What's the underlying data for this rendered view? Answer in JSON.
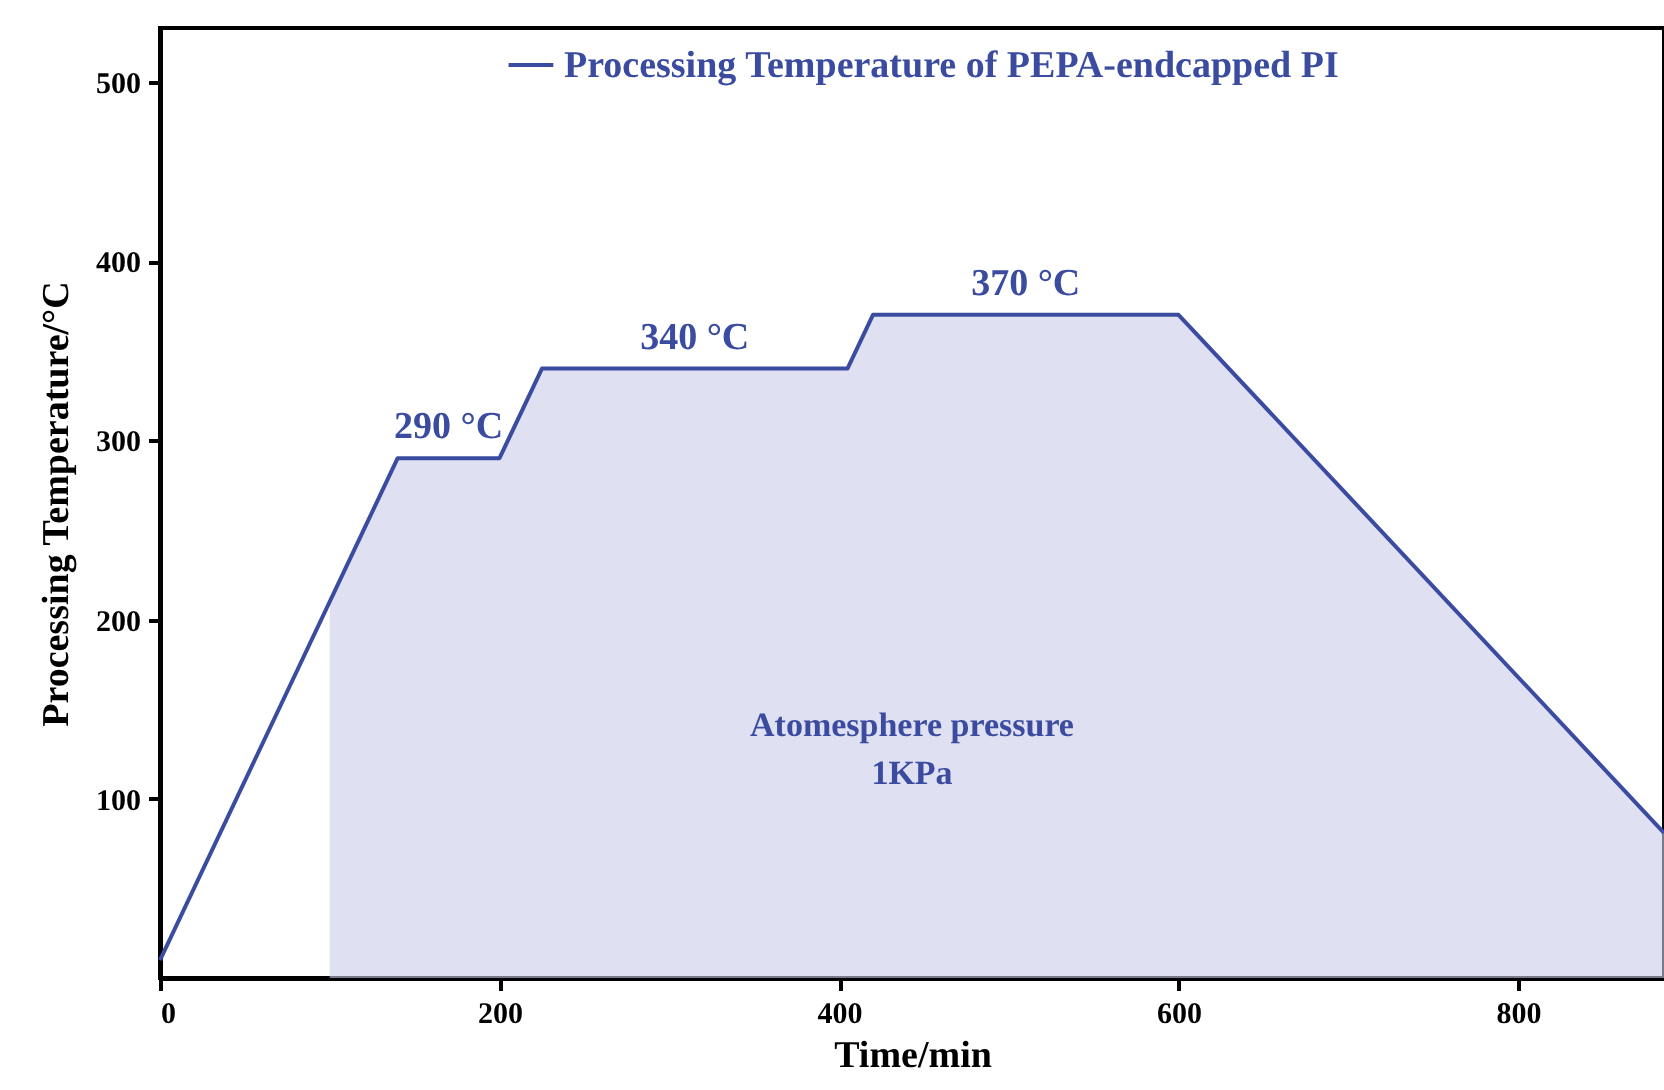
{
  "chart_data": {
    "type": "line",
    "xlabel": "Time/min",
    "ylabel": "Processing Temperature/°C",
    "xlim": [
      0,
      886
    ],
    "ylim": [
      0,
      530
    ],
    "xticks": [
      0,
      200,
      400,
      600,
      800
    ],
    "yticks": [
      100,
      200,
      300,
      400,
      500
    ],
    "grid": false,
    "legend": "top",
    "marker": "none",
    "line_style": "solid",
    "series": [
      {
        "type": "area",
        "color": "#c9cbe9",
        "x": [
          100,
          140,
          200,
          225,
          405,
          420,
          600,
          886
        ],
        "values": [
          210,
          290,
          290,
          340,
          340,
          370,
          370,
          81
        ]
      },
      {
        "name": "Processing Temperature of PEPA-endcapped PI",
        "color": "#3a4ba0",
        "x": [
          0,
          140,
          200,
          225,
          405,
          420,
          600,
          886
        ],
        "values": [
          10,
          290,
          290,
          340,
          340,
          370,
          370,
          81
        ]
      }
    ],
    "annotations": [
      {
        "text": "290 °C",
        "x": 170,
        "y": 290
      },
      {
        "text": "340 °C",
        "x": 315,
        "y": 340
      },
      {
        "text": "370 °C",
        "x": 510,
        "y": 370
      },
      "Atomesphere pressure",
      "1KPa"
    ]
  }
}
